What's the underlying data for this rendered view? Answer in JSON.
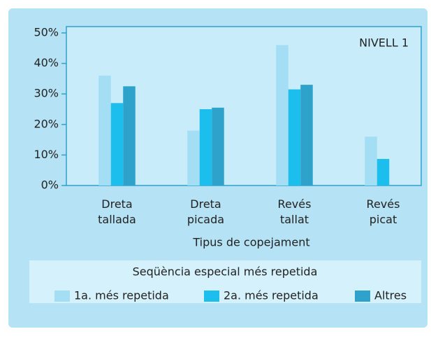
{
  "chart_data": {
    "type": "bar",
    "annotation": "NIVELL 1",
    "x_label": "Tipus de copejament",
    "legend_title": "Seqüència especial més repetida",
    "categories": [
      "Dreta tallada",
      "Dreta picada",
      "Revés tallat",
      "Revés picat"
    ],
    "series": [
      {
        "name": "1a. més repetida",
        "color": "#a4def4",
        "values": [
          36,
          18,
          46,
          16
        ]
      },
      {
        "name": "2a. més repetida",
        "color": "#1cbeed",
        "values": [
          27,
          25,
          31.5,
          8.7
        ]
      },
      {
        "name": "Altres",
        "color": "#2ea2cb",
        "values": [
          32.5,
          25.5,
          33,
          null
        ]
      }
    ],
    "ylim": [
      0,
      50
    ],
    "yticks": [
      {
        "value": 0,
        "label": "0%"
      },
      {
        "value": 10,
        "label": "10%"
      },
      {
        "value": 20,
        "label": "20%"
      },
      {
        "value": 30,
        "label": "30%"
      },
      {
        "value": 40,
        "label": "40%"
      },
      {
        "value": 50,
        "label": "50%"
      }
    ]
  }
}
